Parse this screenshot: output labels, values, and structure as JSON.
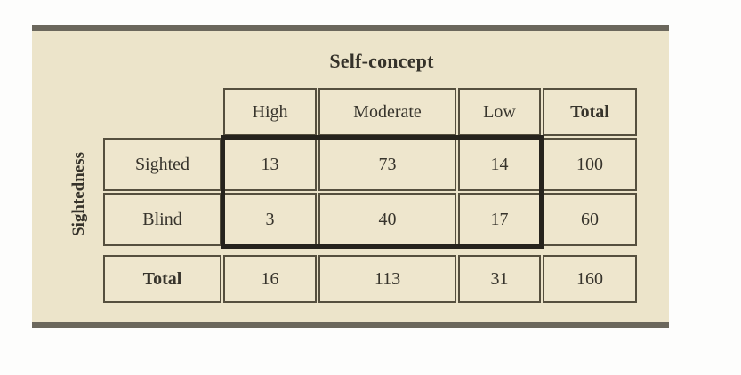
{
  "figure": {
    "col_axis_title": "Self-concept",
    "row_axis_title": "Sightedness",
    "col_headers": [
      "High",
      "Moderate",
      "Low",
      "Total"
    ],
    "rows": [
      {
        "label": "Sighted",
        "values": [
          13,
          73,
          14,
          100
        ]
      },
      {
        "label": "Blind",
        "values": [
          3,
          40,
          17,
          60
        ]
      },
      {
        "label": "Total",
        "values": [
          16,
          113,
          31,
          160
        ]
      }
    ]
  },
  "chart_data": {
    "type": "table",
    "title": "Self-concept",
    "row_axis_label": "Sightedness",
    "columns": [
      "High",
      "Moderate",
      "Low",
      "Total"
    ],
    "rows": [
      [
        "Sighted",
        13,
        73,
        14,
        100
      ],
      [
        "Blind",
        3,
        40,
        17,
        60
      ],
      [
        "Total",
        16,
        113,
        31,
        160
      ]
    ],
    "highlighted_block": {
      "rows": [
        "Sighted",
        "Blind"
      ],
      "columns": [
        "High",
        "Moderate",
        "Low"
      ]
    }
  },
  "colors": {
    "panel_background": "#ece4ca",
    "cell_background": "#eee6cd",
    "rule": "#6b675c",
    "cell_border": "#554f3e",
    "highlight_border": "#26231d",
    "text": "#37342c"
  }
}
